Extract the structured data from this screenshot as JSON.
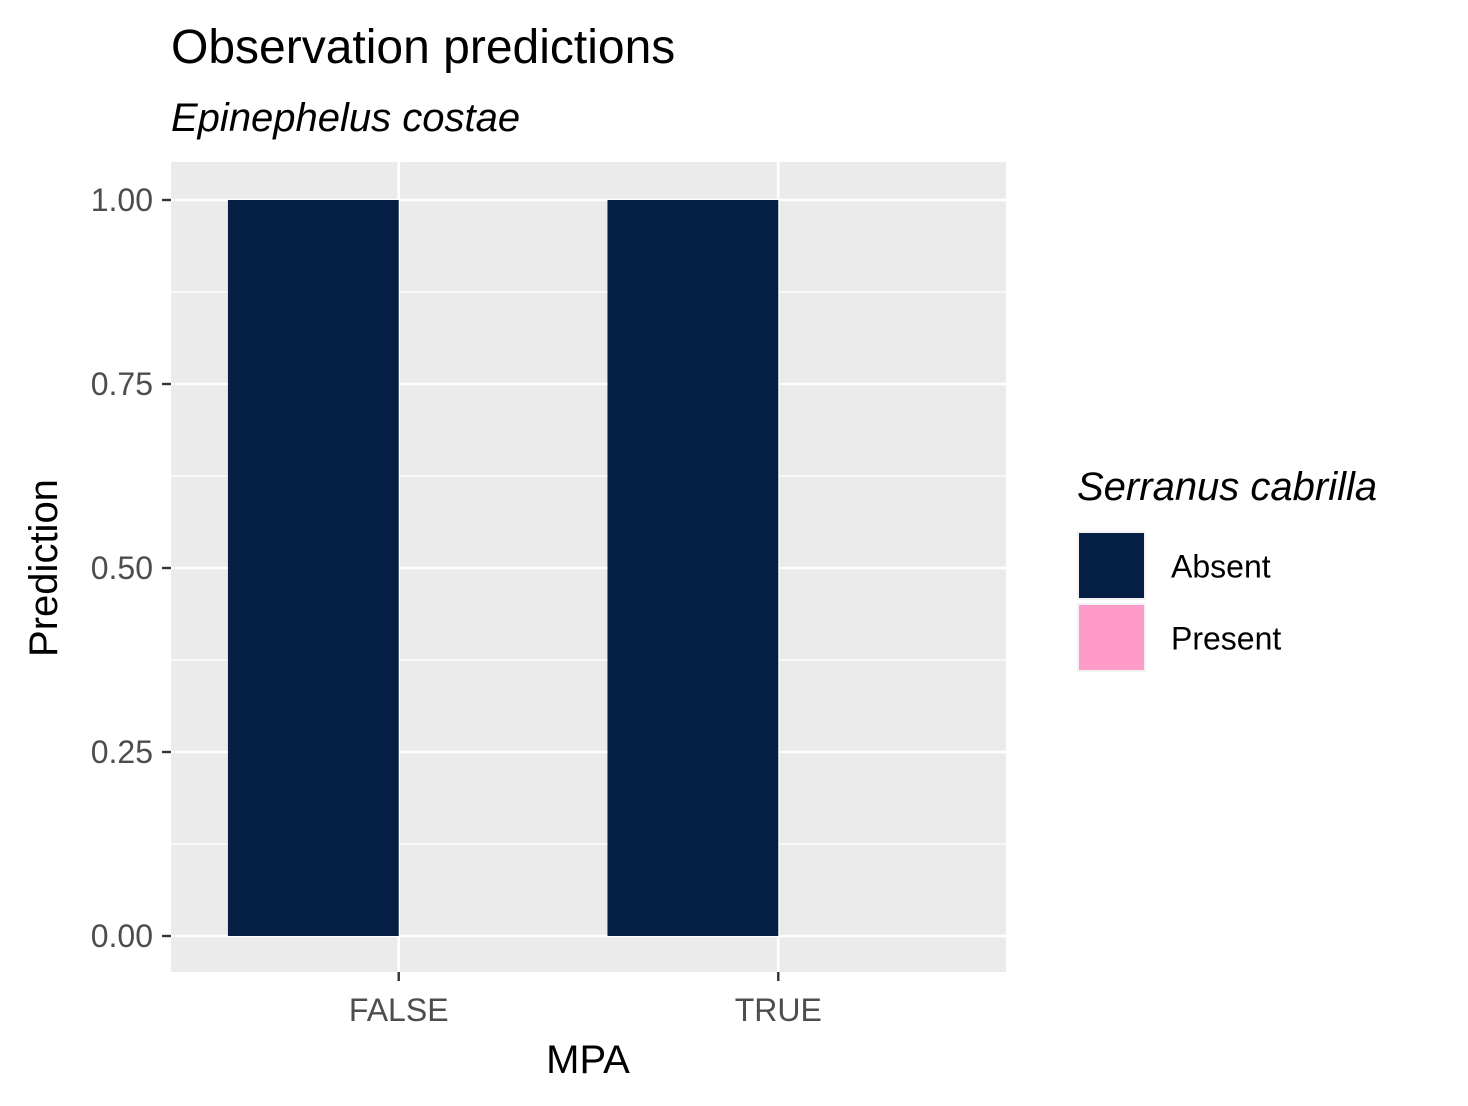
{
  "chart_data": {
    "type": "bar",
    "title": "Observation predictions",
    "subtitle": "Epinephelus costae",
    "xlabel": "MPA",
    "ylabel": "Prediction",
    "categories": [
      "FALSE",
      "TRUE"
    ],
    "series": [
      {
        "name": "Absent",
        "values": [
          1.0,
          1.0
        ],
        "color": "#061f45"
      },
      {
        "name": "Present",
        "values": [
          0.0,
          0.0
        ],
        "color": "#ff9bc9"
      }
    ],
    "ylim": [
      0,
      1
    ],
    "yticks": [
      "0.00",
      "0.25",
      "0.50",
      "0.75",
      "1.00"
    ],
    "ytick_values": [
      0,
      0.25,
      0.5,
      0.75,
      1.0
    ],
    "legend": {
      "title": "Serranus cabrilla",
      "position": "right"
    },
    "grid": true,
    "panel_color": "#ebebeb",
    "grid_color": "#ffffff"
  }
}
